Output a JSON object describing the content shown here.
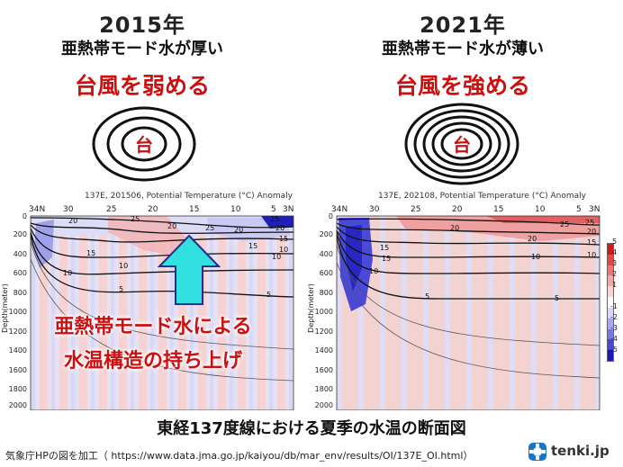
{
  "left": {
    "year": "2015年",
    "water_state": "亜熱帯モード水が厚い",
    "effect": "台風を弱める",
    "typhoon_char": "台",
    "panel_title": "137E, 201506, Potential Temperature (°C) Anomaly",
    "overlay_line1": "亜熱帯モード水による",
    "overlay_line2": "水温構造の持ち上げ",
    "contours": [
      "20",
      "25",
      "20",
      "25",
      "15",
      "20",
      "10",
      "15",
      "10",
      "10",
      "5",
      "5",
      "25",
      "20",
      "15",
      "10"
    ]
  },
  "right": {
    "year": "2021年",
    "water_state": "亜熱帯モード水が薄い",
    "effect": "台風を強める",
    "typhoon_char": "台",
    "panel_title": "137E, 202108, Potential Temperature (°C) Anomaly",
    "contours": [
      "25",
      "20",
      "15",
      "20",
      "15",
      "10",
      "10",
      "5",
      "5",
      "25",
      "20",
      "15",
      "10"
    ]
  },
  "axes": {
    "lat_ticks": [
      "34N",
      "30",
      "25",
      "20",
      "15",
      "10",
      "5",
      "3N"
    ],
    "depth_ticks": [
      "0",
      "200",
      "400",
      "600",
      "800",
      "1000",
      "1200",
      "1400",
      "1600",
      "1800",
      "2000"
    ],
    "ylabel": "Depth(meter)"
  },
  "colorbar": {
    "ticks": [
      "5",
      "4",
      "3",
      "2",
      "1",
      "-1",
      "-2",
      "-3",
      "-4",
      "-5"
    ],
    "colors": [
      "#d81818",
      "#e64545",
      "#ef7575",
      "#f5a5a5",
      "#fad2d2",
      "#ffffff",
      "#d6d6fa",
      "#a8a8f2",
      "#7878e6",
      "#4848d6",
      "#1818c0"
    ]
  },
  "caption": "東経137度線における夏季の水温の断面図",
  "source": "気象庁HPの図を加工（ https://www.data.jma.go.jp/kaiyou/db/mar_env/results/OI/137E_OI.html）",
  "brand": {
    "name": "tenki.jp"
  },
  "colors": {
    "effect_red": "#cc1010",
    "arrow_cyan": "#33e0e0",
    "warm": "#f3b9b9",
    "cool": "#c9c9f5"
  }
}
